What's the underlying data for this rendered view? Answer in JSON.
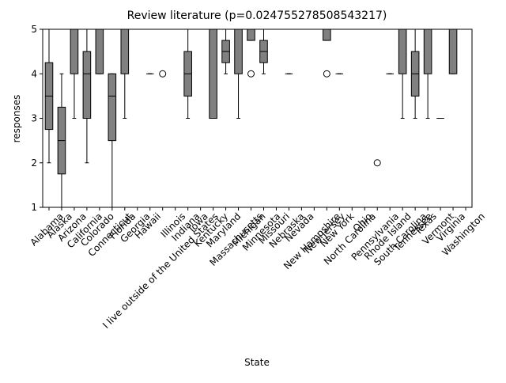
{
  "chart_data": {
    "type": "box",
    "title": "Review literature (p=0.024755278508543217)",
    "x_label": "State",
    "y_label": "responses",
    "categories": [
      "Alabama",
      "Alaska",
      "Arizona",
      "California",
      "Colorado",
      "Connecticut",
      "Florida",
      "Georgia",
      "Hawaii",
      "I live outside of the United States",
      "Illinois",
      "Indiana",
      "Iowa",
      "Kentucky",
      "Maryland",
      "Massachusetts",
      "Michigan",
      "Minnesota",
      "Missouri",
      "Nebraska",
      "Nevada",
      "New Hampshire",
      "New Jersey",
      "New York",
      "North Carolina",
      "Ohio",
      "Pennsylvania",
      "Rhode Island",
      "South Carolina",
      "Tennessee",
      "Texas",
      "Vermont",
      "Virginia",
      "Washington"
    ],
    "color": "#808080",
    "boxes": [
      {
        "min": 2,
        "q1": 2.75,
        "median": 3.5,
        "q3": 4.25,
        "max": 5,
        "outliers": []
      },
      {
        "min": 1,
        "q1": 1.75,
        "median": 2.5,
        "q3": 3.25,
        "max": 4,
        "outliers": []
      },
      {
        "min": 3,
        "q1": 4,
        "median": 5,
        "q3": 5,
        "max": 5,
        "outliers": []
      },
      {
        "min": 2,
        "q1": 3,
        "median": 4,
        "q3": 4.5,
        "max": 5,
        "outliers": []
      },
      {
        "min": 4,
        "q1": 4,
        "median": 5,
        "q3": 5,
        "max": 5,
        "outliers": []
      },
      {
        "min": 1,
        "q1": 2.5,
        "median": 3.5,
        "q3": 4,
        "max": 4,
        "outliers": []
      },
      {
        "min": 3,
        "q1": 4,
        "median": 5,
        "q3": 5,
        "max": 5,
        "outliers": []
      },
      {
        "min": 5,
        "q1": 5,
        "median": 5,
        "q3": 5,
        "max": 5,
        "outliers": []
      },
      {
        "min": 4,
        "q1": 4,
        "median": 4,
        "q3": 4,
        "max": 4,
        "outliers": []
      },
      {
        "min": 5,
        "q1": 5,
        "median": 5,
        "q3": 5,
        "max": 5,
        "outliers": [
          4
        ]
      },
      {
        "min": 5,
        "q1": 5,
        "median": 5,
        "q3": 5,
        "max": 5,
        "outliers": []
      },
      {
        "min": 3,
        "q1": 3.5,
        "median": 4,
        "q3": 4.5,
        "max": 5,
        "outliers": []
      },
      {
        "min": 5,
        "q1": 5,
        "median": 5,
        "q3": 5,
        "max": 5,
        "outliers": []
      },
      {
        "min": 3,
        "q1": 3,
        "median": 5,
        "q3": 5,
        "max": 5,
        "outliers": []
      },
      {
        "min": 4,
        "q1": 4.25,
        "median": 4.5,
        "q3": 4.75,
        "max": 5,
        "outliers": []
      },
      {
        "min": 3,
        "q1": 4,
        "median": 5,
        "q3": 5,
        "max": 5,
        "outliers": []
      },
      {
        "min": 4.75,
        "q1": 4.75,
        "median": 5,
        "q3": 5,
        "max": 5,
        "outliers": [
          4
        ]
      },
      {
        "min": 4,
        "q1": 4.25,
        "median": 4.5,
        "q3": 4.75,
        "max": 5,
        "outliers": []
      },
      {
        "min": 5,
        "q1": 5,
        "median": 5,
        "q3": 5,
        "max": 5,
        "outliers": []
      },
      {
        "min": 4,
        "q1": 4,
        "median": 4,
        "q3": 4,
        "max": 4,
        "outliers": []
      },
      {
        "min": 5,
        "q1": 5,
        "median": 5,
        "q3": 5,
        "max": 5,
        "outliers": []
      },
      {
        "min": 5,
        "q1": 5,
        "median": 5,
        "q3": 5,
        "max": 5,
        "outliers": []
      },
      {
        "min": 4.75,
        "q1": 4.75,
        "median": 5,
        "q3": 5,
        "max": 5,
        "outliers": [
          4
        ]
      },
      {
        "min": 4,
        "q1": 4,
        "median": 4,
        "q3": 4,
        "max": 4,
        "outliers": []
      },
      {
        "min": 5,
        "q1": 5,
        "median": 5,
        "q3": 5,
        "max": 5,
        "outliers": []
      },
      {
        "min": 5,
        "q1": 5,
        "median": 5,
        "q3": 5,
        "max": 5,
        "outliers": []
      },
      {
        "min": 5,
        "q1": 5,
        "median": 5,
        "q3": 5,
        "max": 5,
        "outliers": [
          2
        ]
      },
      {
        "min": 4,
        "q1": 4,
        "median": 4,
        "q3": 4,
        "max": 4,
        "outliers": []
      },
      {
        "min": 3,
        "q1": 4,
        "median": 5,
        "q3": 5,
        "max": 5,
        "outliers": []
      },
      {
        "min": 3,
        "q1": 3.5,
        "median": 4,
        "q3": 4.5,
        "max": 5,
        "outliers": []
      },
      {
        "min": 3,
        "q1": 4,
        "median": 5,
        "q3": 5,
        "max": 5,
        "outliers": []
      },
      {
        "min": 3,
        "q1": 3,
        "median": 3,
        "q3": 3,
        "max": 3,
        "outliers": []
      },
      {
        "min": 4,
        "q1": 4,
        "median": 5,
        "q3": 5,
        "max": 5,
        "outliers": []
      },
      {
        "min": 5,
        "q1": 5,
        "median": 5,
        "q3": 5,
        "max": 5,
        "outliers": []
      }
    ],
    "ylim": [
      1,
      5
    ],
    "yticks": [
      1,
      2,
      3,
      4,
      5
    ]
  }
}
